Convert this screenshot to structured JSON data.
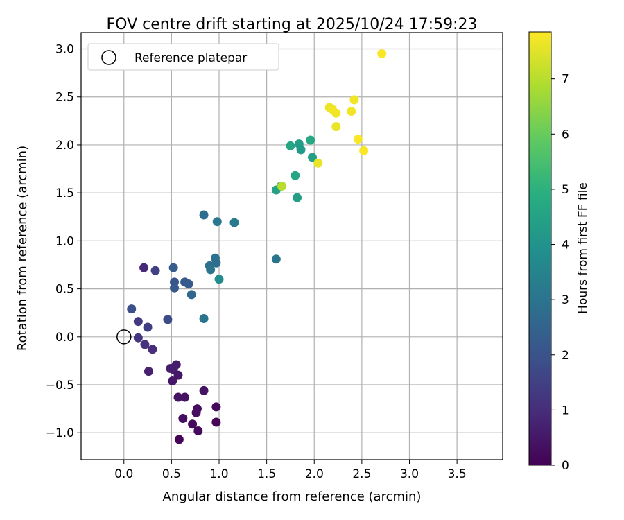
{
  "chart_data": {
    "type": "scatter",
    "title": "FOV centre drift starting at 2025/10/24 17:59:23",
    "xlabel": "Angular distance from reference (arcmin)",
    "ylabel": "Rotation from reference (arcmin)",
    "xlim": [
      -0.45,
      3.98
    ],
    "ylim": [
      -1.28,
      3.17
    ],
    "xticks": [
      "0.0",
      "0.5",
      "1.0",
      "1.5",
      "2.0",
      "2.5",
      "3.0",
      "3.5"
    ],
    "yticks": [
      "−1.0",
      "−0.5",
      "0.0",
      "0.5",
      "1.0",
      "1.5",
      "2.0",
      "2.5",
      "3.0"
    ],
    "grid": true,
    "legend": {
      "position": "top-left",
      "entries": [
        "Reference platepar"
      ]
    },
    "reference_point": {
      "x": 0.0,
      "y": 0.0
    },
    "colorbar": {
      "label": "Hours from first FF file",
      "range": [
        0,
        7.85
      ],
      "ticks": [
        "0",
        "1",
        "2",
        "3",
        "4",
        "5",
        "6",
        "7"
      ],
      "colormap": "viridis"
    },
    "points": [
      {
        "x": 0.21,
        "y": 0.72,
        "h": 0.9
      },
      {
        "x": 0.33,
        "y": 0.69,
        "h": 1.5
      },
      {
        "x": 0.08,
        "y": 0.29,
        "h": 1.9
      },
      {
        "x": 0.15,
        "y": 0.16,
        "h": 1.3
      },
      {
        "x": 0.25,
        "y": 0.1,
        "h": 1.4
      },
      {
        "x": 0.15,
        "y": -0.01,
        "h": 1.2
      },
      {
        "x": 0.22,
        "y": -0.08,
        "h": 1.1
      },
      {
        "x": 0.3,
        "y": -0.13,
        "h": 1.0
      },
      {
        "x": 0.26,
        "y": -0.36,
        "h": 0.7
      },
      {
        "x": 0.46,
        "y": 0.18,
        "h": 1.8
      },
      {
        "x": 0.52,
        "y": 0.72,
        "h": 2.3
      },
      {
        "x": 0.53,
        "y": 0.57,
        "h": 2.1
      },
      {
        "x": 0.53,
        "y": 0.51,
        "h": 2.2
      },
      {
        "x": 0.64,
        "y": 0.57,
        "h": 2.2
      },
      {
        "x": 0.68,
        "y": 0.55,
        "h": 2.2
      },
      {
        "x": 0.71,
        "y": 0.44,
        "h": 2.6
      },
      {
        "x": 0.84,
        "y": 1.27,
        "h": 2.8
      },
      {
        "x": 0.98,
        "y": 1.2,
        "h": 3.1
      },
      {
        "x": 1.16,
        "y": 1.19,
        "h": 3.2
      },
      {
        "x": 0.9,
        "y": 0.74,
        "h": 2.9
      },
      {
        "x": 0.91,
        "y": 0.7,
        "h": 3.0
      },
      {
        "x": 0.96,
        "y": 0.82,
        "h": 2.9
      },
      {
        "x": 0.97,
        "y": 0.77,
        "h": 2.8
      },
      {
        "x": 1.0,
        "y": 0.6,
        "h": 3.8
      },
      {
        "x": 0.84,
        "y": 0.19,
        "h": 3.0
      },
      {
        "x": 1.6,
        "y": 0.81,
        "h": 3.0
      },
      {
        "x": 0.49,
        "y": -0.33,
        "h": 0.6
      },
      {
        "x": 0.52,
        "y": -0.34,
        "h": 0.6
      },
      {
        "x": 0.55,
        "y": -0.29,
        "h": 0.6
      },
      {
        "x": 0.57,
        "y": -0.4,
        "h": 0.5
      },
      {
        "x": 0.51,
        "y": -0.46,
        "h": 0.5
      },
      {
        "x": 0.57,
        "y": -0.63,
        "h": 0.4
      },
      {
        "x": 0.64,
        "y": -0.63,
        "h": 0.4
      },
      {
        "x": 0.84,
        "y": -0.56,
        "h": 0.4
      },
      {
        "x": 0.77,
        "y": -0.75,
        "h": 0.3
      },
      {
        "x": 0.76,
        "y": -0.79,
        "h": 0.3
      },
      {
        "x": 0.62,
        "y": -0.85,
        "h": 0.3
      },
      {
        "x": 0.72,
        "y": -0.91,
        "h": 0.2
      },
      {
        "x": 0.78,
        "y": -0.98,
        "h": 0.2
      },
      {
        "x": 0.97,
        "y": -0.73,
        "h": 0.2
      },
      {
        "x": 0.97,
        "y": -0.89,
        "h": 0.1
      },
      {
        "x": 0.58,
        "y": -1.07,
        "h": 0.1
      },
      {
        "x": 1.6,
        "y": 1.53,
        "h": 4.5
      },
      {
        "x": 1.65,
        "y": 1.57,
        "h": 4.8
      },
      {
        "x": 1.66,
        "y": 1.57,
        "h": 7.0
      },
      {
        "x": 1.8,
        "y": 1.68,
        "h": 4.6
      },
      {
        "x": 1.82,
        "y": 1.45,
        "h": 4.4
      },
      {
        "x": 1.75,
        "y": 1.99,
        "h": 4.6
      },
      {
        "x": 1.84,
        "y": 2.01,
        "h": 4.3
      },
      {
        "x": 1.86,
        "y": 1.95,
        "h": 4.2
      },
      {
        "x": 1.96,
        "y": 2.05,
        "h": 4.7
      },
      {
        "x": 1.98,
        "y": 1.87,
        "h": 4.4
      },
      {
        "x": 2.04,
        "y": 1.81,
        "h": 7.6
      },
      {
        "x": 2.16,
        "y": 2.39,
        "h": 7.6
      },
      {
        "x": 2.19,
        "y": 2.37,
        "h": 7.7
      },
      {
        "x": 2.23,
        "y": 2.33,
        "h": 7.7
      },
      {
        "x": 2.23,
        "y": 2.19,
        "h": 7.6
      },
      {
        "x": 2.39,
        "y": 2.35,
        "h": 7.7
      },
      {
        "x": 2.42,
        "y": 2.47,
        "h": 7.7
      },
      {
        "x": 2.46,
        "y": 2.06,
        "h": 7.8
      },
      {
        "x": 2.52,
        "y": 1.94,
        "h": 7.8
      },
      {
        "x": 2.71,
        "y": 2.95,
        "h": 7.8
      }
    ]
  }
}
